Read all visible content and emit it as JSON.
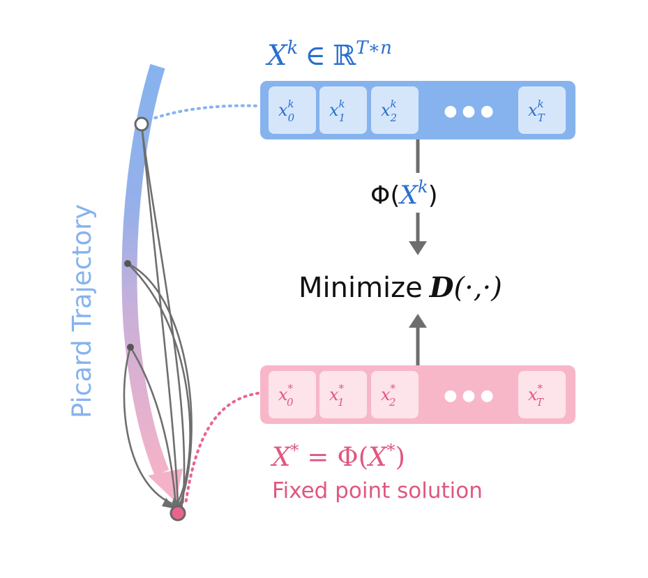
{
  "trajectory": {
    "label": "Picard Trajectory",
    "color_top": "#86b3ee",
    "color_bottom": "#f4b2c8"
  },
  "top_vector": {
    "title_symbol": "X",
    "title_sup": "k",
    "title_in": "∈",
    "title_space": "ℝ",
    "title_space_sup": "T∗n",
    "cells": [
      {
        "base": "x",
        "sub": "0",
        "sup": "k"
      },
      {
        "base": "x",
        "sub": "1",
        "sup": "k"
      },
      {
        "base": "x",
        "sub": "2",
        "sup": "k"
      },
      {
        "base": "x",
        "sub": "T",
        "sup": "k"
      }
    ],
    "ellipsis": "● ● ●",
    "bar_color": "#86b3ee",
    "cell_color": "#d6e6fa",
    "text_color": "#2a6fd0"
  },
  "bottom_vector": {
    "cells": [
      {
        "base": "x",
        "sub": "0",
        "sup": "*"
      },
      {
        "base": "x",
        "sub": "1",
        "sup": "*"
      },
      {
        "base": "x",
        "sub": "2",
        "sup": "*"
      },
      {
        "base": "x",
        "sub": "T",
        "sup": "*"
      }
    ],
    "ellipsis": "● ● ●",
    "bar_color": "#f7b7c9",
    "cell_color": "#fde3ea",
    "text_color": "#e0577f"
  },
  "map_label": {
    "phi": "Φ",
    "open": "(",
    "arg": "X",
    "arg_sup": "k",
    "close": ")"
  },
  "objective": {
    "word": "Minimize",
    "func": "D",
    "args": "(·,·)"
  },
  "fixed_point": {
    "lhs": "X",
    "lhs_sup": "*",
    "eq": "=",
    "phi": "Φ",
    "open": "(",
    "arg": "X",
    "arg_sup": "*",
    "close": ")",
    "caption": "Fixed point solution",
    "color": "#e0577f"
  },
  "colors": {
    "arrow_gray": "#6e6e6e",
    "dot_pink": "#e8648a"
  }
}
